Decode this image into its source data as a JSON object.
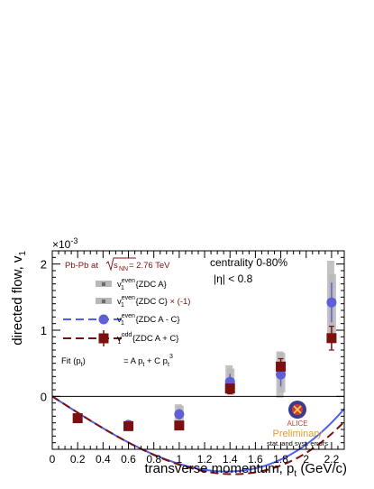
{
  "chart_data": {
    "type": "scatter",
    "title": "",
    "xlabel": "transverse momentum, p",
    "xlabel_sub": "t",
    "xlabel_units": " (GeV/c)",
    "ylabel": "directed flow, v",
    "ylabel_sub": "1",
    "y_multiplier": "×10",
    "y_multiplier_exp": "-3",
    "xlim": [
      0,
      2.3
    ],
    "ylim": [
      -0.8,
      2.2
    ],
    "x_ticks": [
      {
        "v": 0,
        "label": "0"
      },
      {
        "v": 0.2,
        "label": "0.2"
      },
      {
        "v": 0.4,
        "label": "0.4"
      },
      {
        "v": 0.6,
        "label": "0.6"
      },
      {
        "v": 0.8,
        "label": "0.8"
      },
      {
        "v": 1.0,
        "label": "1"
      },
      {
        "v": 1.2,
        "label": "1.2"
      },
      {
        "v": 1.4,
        "label": "1.4"
      },
      {
        "v": 1.6,
        "label": "1.6"
      },
      {
        "v": 1.8,
        "label": "1.8"
      },
      {
        "v": 2.0,
        "label": "2"
      },
      {
        "v": 2.2,
        "label": "2.2"
      }
    ],
    "y_ticks": [
      {
        "v": 0,
        "label": "0"
      },
      {
        "v": 1,
        "label": "1"
      },
      {
        "v": 2,
        "label": "2"
      }
    ],
    "zero_line": true,
    "grid": false,
    "annotations": {
      "system": "Pb-Pb at ",
      "sqrt_sub": "NN",
      "energy": " = 2.76 TeV",
      "centrality": "centrality 0-80%",
      "eta_cut": "|η| < 0.8",
      "fit_label": "Fit (p",
      "fit_label_sub": "t",
      "fit_label_close": ")",
      "fit_formula": "=   A p",
      "fit_formula_sub": "t",
      "fit_formula_mid": " + C p",
      "fit_formula_sub2": "t",
      "fit_formula_sup": "3",
      "logo_text": "ALICE",
      "preliminary": "Preliminary",
      "errors_note": "stat. and syst. errors"
    },
    "legend": [
      {
        "key": "even_a",
        "prefix": "v",
        "sub": "1",
        "sup": "even",
        "text": " {ZDC  A}",
        "suffix": ""
      },
      {
        "key": "even_c",
        "prefix": "v",
        "sub": "1",
        "sup": "even",
        "text": " {ZDC C}",
        "suffix": " × (-1)"
      },
      {
        "key": "even_ac",
        "prefix": "v",
        "sub": "1",
        "sup": "even",
        "text": " {ZDC A - C}",
        "suffix": ""
      },
      {
        "key": "odd",
        "prefix": "v",
        "sub": "1",
        "sup": "odd",
        "text": " {ZDC A + C}",
        "suffix": ""
      }
    ],
    "series": [
      {
        "key": "even_a",
        "x": [
          0.6,
          1.0,
          1.4,
          1.8,
          2.2
        ],
        "y": [
          -0.44,
          -0.26,
          0.25,
          0.33,
          1.45
        ],
        "syst": [
          0.05,
          0.14,
          0.22,
          0.35,
          0.6
        ]
      },
      {
        "key": "even_c",
        "x": [
          0.6,
          1.0,
          1.4,
          1.8,
          2.2
        ],
        "y": [
          -0.44,
          -0.28,
          0.22,
          0.36,
          1.4
        ],
        "syst": [
          0.05,
          0.14,
          0.2,
          0.3,
          0.45
        ]
      },
      {
        "key": "even_ac",
        "x": [
          0.6,
          1.0,
          1.4,
          1.8,
          2.2
        ],
        "y": [
          -0.43,
          -0.27,
          0.22,
          0.33,
          1.42
        ],
        "err": [
          0.04,
          0.08,
          0.12,
          0.18,
          0.3
        ]
      },
      {
        "key": "odd",
        "x": [
          0.2,
          0.6,
          1.0,
          1.4,
          1.8,
          2.2
        ],
        "y": [
          -0.33,
          -0.45,
          -0.44,
          0.12,
          0.45,
          0.88
        ],
        "err": [
          0.03,
          0.03,
          0.06,
          0.08,
          0.12,
          0.18
        ]
      }
    ],
    "fits": [
      {
        "key": "even_ac",
        "A": -1.24,
        "C": 0.219,
        "x_range": [
          0,
          2.3
        ]
      },
      {
        "key": "odd",
        "A": -1.235,
        "C": 0.202,
        "x_range": [
          0,
          2.3
        ]
      }
    ],
    "colors": {
      "even_band": "#b8b8b8",
      "even_marker": "#6a6a6a",
      "even_ac": "#5f5fd8",
      "even_ac_fit": "#4f5ff0",
      "odd": "#7c0f0f",
      "annotation_red": "#7a1010",
      "preliminary": "#e09a3a",
      "axis": "#000000"
    }
  }
}
